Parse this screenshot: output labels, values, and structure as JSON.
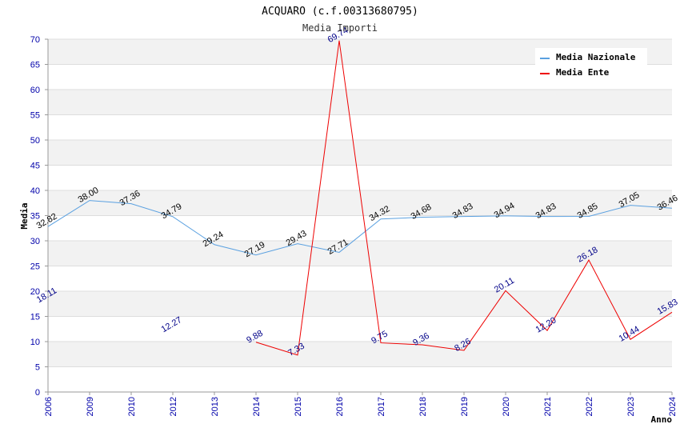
{
  "chart_data": {
    "type": "line",
    "title": "ACQUARO (c.f.00313680795)",
    "subtitle": "Media Importi",
    "xlabel": "Anno",
    "ylabel": "Media",
    "ylim": [
      0,
      70
    ],
    "yticks": [
      0,
      5,
      10,
      15,
      20,
      25,
      30,
      35,
      40,
      45,
      50,
      55,
      60,
      65,
      70
    ],
    "grid": true,
    "legend_position": "top-right",
    "categories": [
      "2006",
      "2009",
      "2010",
      "2012",
      "2013",
      "2014",
      "2015",
      "2016",
      "2017",
      "2018",
      "2019",
      "2020",
      "2021",
      "2022",
      "2023",
      "2024"
    ],
    "series": [
      {
        "name": "Media Nazionale",
        "color": "#5aa0e0",
        "values": [
          32.82,
          38.0,
          37.36,
          34.79,
          29.24,
          27.19,
          29.43,
          27.71,
          34.32,
          34.68,
          34.83,
          34.94,
          34.83,
          34.85,
          37.05,
          36.46
        ],
        "labels": [
          "32.82",
          "38.00",
          "37.36",
          "34.79",
          "29.24",
          "27.19",
          "29.43",
          "27.71",
          "34.32",
          "34.68",
          "34.83",
          "34.94",
          "34.83",
          "34.85",
          "37.05",
          "36.46"
        ]
      },
      {
        "name": "Media Ente",
        "color": "#ee0000",
        "values": [
          18.11,
          null,
          null,
          12.27,
          null,
          9.88,
          7.33,
          69.74,
          9.75,
          9.36,
          8.26,
          20.11,
          12.2,
          26.18,
          10.44,
          15.83
        ],
        "labels": [
          "18.11",
          "",
          "",
          "12.27",
          "",
          "9.88",
          "7.33",
          "69.74",
          "9.75",
          "9.36",
          "8.26",
          "20.11",
          "12.20",
          "26.18",
          "10.44",
          "15.83"
        ]
      }
    ]
  }
}
